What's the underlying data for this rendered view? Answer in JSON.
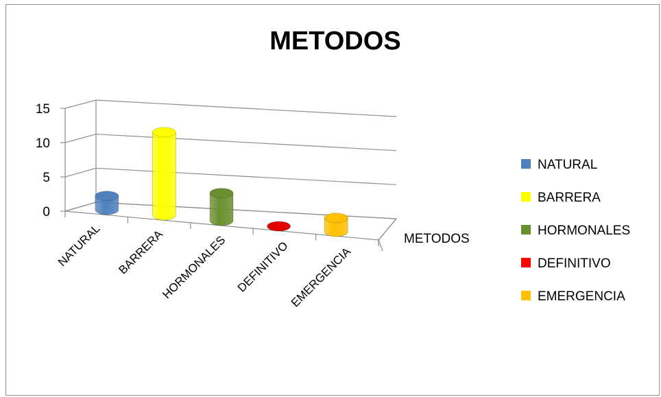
{
  "chart_data": {
    "type": "bar",
    "style": "3d-cylinder",
    "title": "METODOS",
    "categories": [
      "NATURAL",
      "BARRERA",
      "HORMONALES",
      "DEFINITIVO",
      "EMERGENCIA"
    ],
    "series_axis_label": "METODOS",
    "y_ticks": [
      "0",
      "5",
      "10",
      "15"
    ],
    "ylim": [
      0,
      15
    ],
    "values": [
      2,
      12,
      4,
      0,
      2
    ],
    "colors": [
      "#4f81bd",
      "#ffff00",
      "#6a8f2e",
      "#e00000",
      "#ffc000"
    ],
    "legend": [
      {
        "label": "NATURAL",
        "color": "#4f81bd"
      },
      {
        "label": "BARRERA",
        "color": "#ffff00"
      },
      {
        "label": "HORMONALES",
        "color": "#6a8f2e"
      },
      {
        "label": "DEFINITIVO",
        "color": "#ff0000"
      },
      {
        "label": "EMERGENCIA",
        "color": "#ffc000"
      }
    ],
    "legend_position": "right",
    "grid": true
  }
}
